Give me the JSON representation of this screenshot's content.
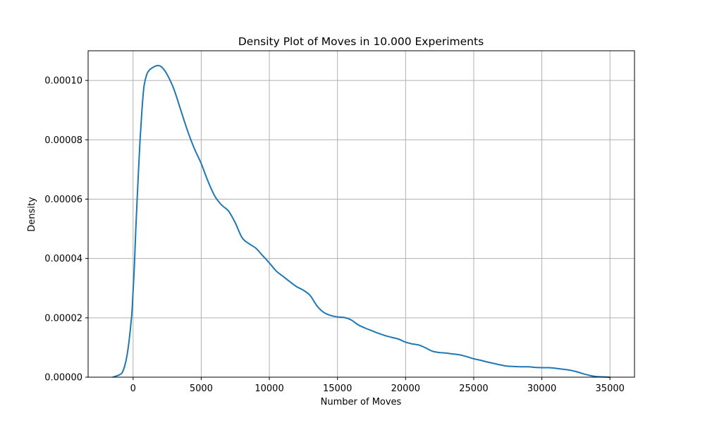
{
  "chart_data": {
    "type": "line",
    "title": "Density Plot of Moves in 10.000 Experiments",
    "xlabel": "Number of Moves",
    "ylabel": "Density",
    "xlim": [
      -3300,
      36800
    ],
    "ylim": [
      0,
      0.00011
    ],
    "grid": true,
    "x_ticks": [
      0,
      5000,
      10000,
      15000,
      20000,
      25000,
      30000,
      35000
    ],
    "x_tick_labels": [
      "0",
      "5000",
      "10000",
      "15000",
      "20000",
      "25000",
      "30000",
      "35000"
    ],
    "y_ticks": [
      0,
      2e-05,
      4e-05,
      6e-05,
      8e-05,
      0.0001
    ],
    "y_tick_labels": [
      "0.00000",
      "0.00002",
      "0.00004",
      "0.00006",
      "0.00008",
      "0.00010"
    ],
    "series": [
      {
        "color": "#1f77b4",
        "points": [
          [
            -1500,
            0.0
          ],
          [
            -1000,
            8e-07
          ],
          [
            -750,
            2e-06
          ],
          [
            -500,
            6e-06
          ],
          [
            -300,
            1.2e-05
          ],
          [
            -100,
            2.1e-05
          ],
          [
            0,
            2.9e-05
          ],
          [
            100,
            3.8e-05
          ],
          [
            200,
            5e-05
          ],
          [
            350,
            6.5e-05
          ],
          [
            500,
            7.9e-05
          ],
          [
            650,
            9e-05
          ],
          [
            800,
            9.8e-05
          ],
          [
            1000,
            0.000102
          ],
          [
            1200,
            0.0001035
          ],
          [
            1500,
            0.0001045
          ],
          [
            1800,
            0.000105
          ],
          [
            2100,
            0.0001045
          ],
          [
            2500,
            0.000102
          ],
          [
            3000,
            9.7e-05
          ],
          [
            3500,
            9e-05
          ],
          [
            4000,
            8.3e-05
          ],
          [
            4500,
            7.7e-05
          ],
          [
            5000,
            7.2e-05
          ],
          [
            5500,
            6.6e-05
          ],
          [
            6000,
            6.1e-05
          ],
          [
            6500,
            5.8e-05
          ],
          [
            7000,
            5.6e-05
          ],
          [
            7500,
            5.2e-05
          ],
          [
            8000,
            4.7e-05
          ],
          [
            8500,
            4.5e-05
          ],
          [
            9000,
            4.35e-05
          ],
          [
            9500,
            4.1e-05
          ],
          [
            10000,
            3.85e-05
          ],
          [
            10500,
            3.58e-05
          ],
          [
            11000,
            3.4e-05
          ],
          [
            11500,
            3.22e-05
          ],
          [
            12000,
            3.05e-05
          ],
          [
            12500,
            2.93e-05
          ],
          [
            13000,
            2.75e-05
          ],
          [
            13500,
            2.4e-05
          ],
          [
            14000,
            2.18e-05
          ],
          [
            14500,
            2.08e-05
          ],
          [
            15000,
            2.03e-05
          ],
          [
            15500,
            2.01e-05
          ],
          [
            16000,
            1.93e-05
          ],
          [
            16500,
            1.77e-05
          ],
          [
            17000,
            1.66e-05
          ],
          [
            17500,
            1.57e-05
          ],
          [
            18000,
            1.48e-05
          ],
          [
            18500,
            1.4e-05
          ],
          [
            19000,
            1.34e-05
          ],
          [
            19500,
            1.28e-05
          ],
          [
            20000,
            1.18e-05
          ],
          [
            20500,
            1.12e-05
          ],
          [
            21000,
            1.08e-05
          ],
          [
            21500,
            9.8e-06
          ],
          [
            22000,
            8.7e-06
          ],
          [
            22500,
            8.3e-06
          ],
          [
            23000,
            8.1e-06
          ],
          [
            23500,
            7.8e-06
          ],
          [
            24000,
            7.5e-06
          ],
          [
            24500,
            6.9e-06
          ],
          [
            25000,
            6.2e-06
          ],
          [
            25500,
            5.7e-06
          ],
          [
            26000,
            5.1e-06
          ],
          [
            26500,
            4.6e-06
          ],
          [
            27000,
            4.1e-06
          ],
          [
            27500,
            3.7e-06
          ],
          [
            28000,
            3.6e-06
          ],
          [
            28500,
            3.5e-06
          ],
          [
            29000,
            3.5e-06
          ],
          [
            29500,
            3.3e-06
          ],
          [
            30000,
            3.2e-06
          ],
          [
            30500,
            3.2e-06
          ],
          [
            31000,
            3e-06
          ],
          [
            31500,
            2.7e-06
          ],
          [
            32000,
            2.4e-06
          ],
          [
            32500,
            1.9e-06
          ],
          [
            33000,
            1.2e-06
          ],
          [
            33500,
            6e-07
          ],
          [
            34000,
            2e-07
          ],
          [
            35000,
            0.0
          ]
        ]
      }
    ]
  }
}
